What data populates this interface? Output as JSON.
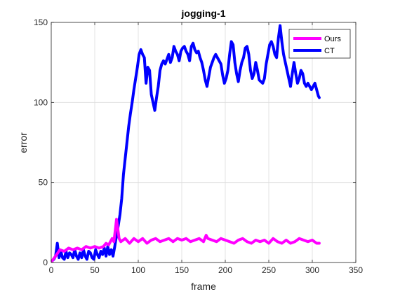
{
  "figure": {
    "background": "#ffffff",
    "axes_background": "#ffffff"
  },
  "chart_data": {
    "type": "line",
    "title": "jogging-1",
    "xlabel": "frame",
    "ylabel": "error",
    "xlim": [
      0,
      350
    ],
    "ylim": [
      0,
      150
    ],
    "xticks": [
      0,
      50,
      100,
      150,
      200,
      250,
      300,
      350
    ],
    "yticks": [
      0,
      50,
      100,
      150
    ],
    "grid": true,
    "legend_position": "top-right",
    "series": [
      {
        "name": "Ours",
        "color": "#ff00ff",
        "x": [
          1,
          5,
          10,
          15,
          20,
          25,
          30,
          35,
          40,
          45,
          50,
          55,
          60,
          63,
          66,
          70,
          72,
          74,
          75,
          78,
          80,
          85,
          90,
          95,
          100,
          105,
          110,
          115,
          120,
          125,
          130,
          135,
          140,
          145,
          150,
          155,
          160,
          165,
          170,
          175,
          178,
          180,
          185,
          190,
          195,
          200,
          205,
          210,
          215,
          220,
          225,
          230,
          235,
          240,
          245,
          250,
          255,
          260,
          265,
          270,
          275,
          280,
          285,
          290,
          295,
          300,
          305,
          308
        ],
        "y": [
          1,
          4,
          8,
          7,
          9,
          8,
          9,
          8,
          10,
          9,
          10,
          9,
          10,
          12,
          11,
          15,
          13,
          22,
          27,
          15,
          13,
          15,
          12,
          15,
          13,
          15,
          12,
          14,
          15,
          13,
          14,
          15,
          13,
          15,
          14,
          15,
          13,
          14,
          15,
          13,
          17,
          15,
          14,
          13,
          15,
          14,
          13,
          12,
          14,
          15,
          13,
          12,
          14,
          13,
          14,
          12,
          15,
          13,
          12,
          14,
          12,
          13,
          15,
          14,
          13,
          14,
          12,
          12
        ]
      },
      {
        "name": "CT",
        "color": "#0000ff",
        "x": [
          1,
          3,
          5,
          7,
          9,
          11,
          13,
          15,
          17,
          19,
          21,
          23,
          25,
          27,
          29,
          31,
          33,
          35,
          37,
          39,
          41,
          43,
          45,
          47,
          49,
          51,
          53,
          55,
          57,
          59,
          61,
          63,
          65,
          67,
          69,
          71,
          73,
          75,
          77,
          79,
          81,
          83,
          85,
          87,
          89,
          91,
          93,
          95,
          97,
          99,
          101,
          103,
          105,
          107,
          109,
          111,
          113,
          115,
          117,
          119,
          121,
          123,
          125,
          127,
          129,
          131,
          133,
          135,
          137,
          139,
          141,
          143,
          145,
          147,
          149,
          151,
          153,
          155,
          157,
          159,
          161,
          163,
          165,
          167,
          169,
          171,
          173,
          175,
          177,
          179,
          181,
          183,
          185,
          187,
          189,
          191,
          193,
          195,
          197,
          199,
          201,
          203,
          205,
          207,
          209,
          211,
          213,
          215,
          217,
          219,
          221,
          223,
          225,
          227,
          229,
          231,
          233,
          235,
          237,
          239,
          241,
          243,
          245,
          247,
          249,
          251,
          253,
          255,
          257,
          259,
          261,
          263,
          265,
          267,
          269,
          271,
          273,
          275,
          277,
          279,
          281,
          283,
          285,
          287,
          289,
          291,
          293,
          295,
          297,
          299,
          301,
          303,
          305,
          307,
          308
        ],
        "y": [
          1,
          2,
          4,
          12,
          3,
          7,
          3,
          2,
          7,
          3,
          6,
          5,
          3,
          8,
          4,
          2,
          6,
          3,
          8,
          4,
          2,
          7,
          6,
          3,
          2,
          8,
          5,
          3,
          7,
          5,
          9,
          4,
          10,
          5,
          8,
          4,
          10,
          17,
          23,
          30,
          40,
          55,
          65,
          75,
          85,
          93,
          100,
          108,
          115,
          122,
          130,
          133,
          130,
          128,
          112,
          122,
          120,
          105,
          100,
          95,
          103,
          110,
          120,
          124,
          126,
          124,
          127,
          130,
          125,
          128,
          135,
          132,
          130,
          126,
          132,
          134,
          135,
          132,
          130,
          126,
          135,
          137,
          133,
          131,
          132,
          128,
          125,
          120,
          114,
          110,
          116,
          122,
          125,
          128,
          130,
          128,
          126,
          124,
          117,
          112,
          115,
          120,
          130,
          138,
          136,
          125,
          118,
          113,
          120,
          125,
          128,
          134,
          135,
          130,
          120,
          115,
          118,
          125,
          120,
          114,
          113,
          112,
          115,
          124,
          130,
          136,
          138,
          135,
          130,
          128,
          140,
          148,
          138,
          130,
          125,
          120,
          115,
          110,
          118,
          125,
          118,
          112,
          115,
          120,
          118,
          112,
          110,
          112,
          110,
          108,
          110,
          112,
          108,
          104,
          103
        ]
      }
    ]
  }
}
